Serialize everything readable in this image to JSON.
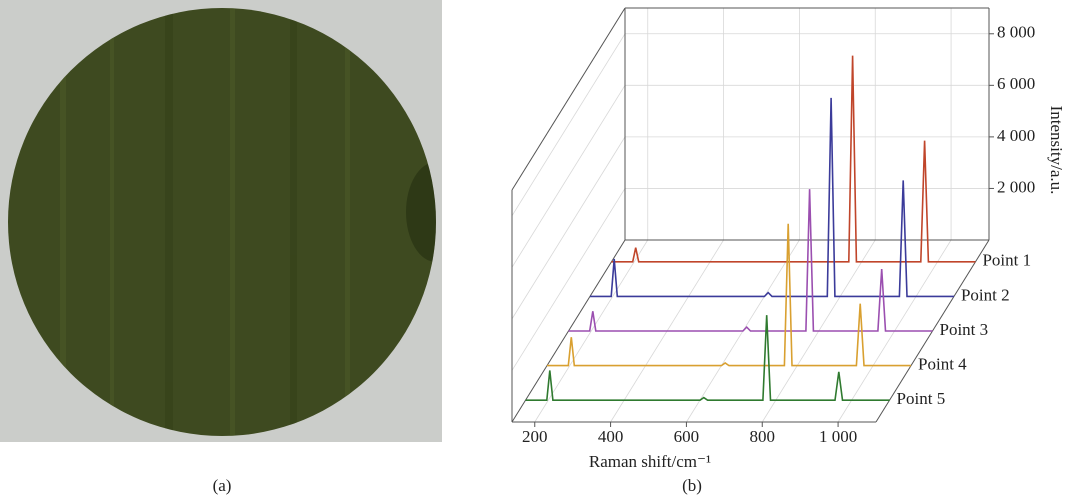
{
  "captions": [
    "(a)",
    "(b)"
  ],
  "chart_data": {
    "type": "waterfall",
    "x_label": "Raman shift/cm⁻¹",
    "y_label": "Intensity/a.u.",
    "x": [
      140,
      196,
      204,
      212,
      600,
      610,
      620,
      766,
      776,
      786,
      956,
      966,
      976,
      1100
    ],
    "xlim": [
      140,
      1100
    ],
    "ylim": [
      0,
      9000
    ],
    "xticks": [
      200,
      400,
      600,
      800,
      {
        "value": 1000,
        "label": "1 000"
      }
    ],
    "yticks": [
      {
        "value": 2000,
        "label": "2 000"
      },
      {
        "value": 4000,
        "label": "4 000"
      },
      {
        "value": 6000,
        "label": "6 000"
      },
      {
        "value": 8000,
        "label": "8 000"
      }
    ],
    "grid": true,
    "series": [
      {
        "name": "Point 1",
        "color": "#c0452a",
        "values": [
          0,
          0,
          550,
          0,
          0,
          0,
          0,
          0,
          8000,
          0,
          0,
          4700,
          0,
          0
        ]
      },
      {
        "name": "Point 2",
        "color": "#3b3b9a",
        "values": [
          0,
          0,
          1450,
          0,
          0,
          150,
          0,
          0,
          7700,
          0,
          0,
          4500,
          0,
          0
        ]
      },
      {
        "name": "Point 3",
        "color": "#9b4fb0",
        "values": [
          0,
          0,
          770,
          0,
          0,
          150,
          0,
          0,
          5500,
          0,
          0,
          2400,
          0,
          0
        ]
      },
      {
        "name": "Point 4",
        "color": "#d9a030",
        "values": [
          0,
          0,
          1100,
          0,
          0,
          100,
          0,
          0,
          5500,
          0,
          0,
          2400,
          0,
          0
        ]
      },
      {
        "name": "Point 5",
        "color": "#2f7a2f",
        "values": [
          0,
          0,
          1150,
          0,
          0,
          100,
          0,
          0,
          3300,
          0,
          0,
          1100,
          0,
          0
        ]
      }
    ]
  }
}
